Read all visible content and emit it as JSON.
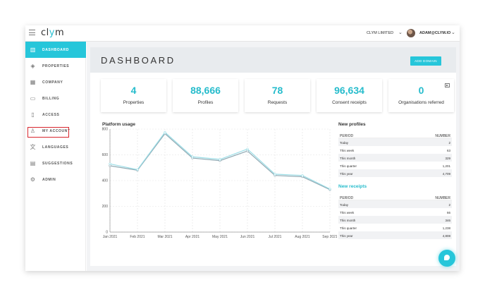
{
  "app": {
    "logo_prefix": "cl",
    "logo_y": "y",
    "logo_suffix": "m",
    "org_name": "CLYM LIMITED",
    "user_email": "ADAM@CLYM.IO"
  },
  "sidebar": {
    "items": [
      {
        "label": "DASHBOARD",
        "icon": "chart-icon"
      },
      {
        "label": "PROPERTIES",
        "icon": "layers-icon"
      },
      {
        "label": "COMPANY",
        "icon": "building-icon"
      },
      {
        "label": "BILLING",
        "icon": "credit-card-icon"
      },
      {
        "label": "ACCESS",
        "icon": "key-icon"
      },
      {
        "label": "MY ACCOUNT",
        "icon": "user-icon"
      },
      {
        "label": "LANGUAGES",
        "icon": "translate-icon"
      },
      {
        "label": "SUGGESTIONS",
        "icon": "book-icon"
      },
      {
        "label": "ADMIN",
        "icon": "gear-icon"
      }
    ]
  },
  "page": {
    "title": "DASHBOARD",
    "add_domain": "ADD DOMAIN"
  },
  "stats": [
    {
      "value": "4",
      "label": "Properties"
    },
    {
      "value": "88,666",
      "label": "Profiles"
    },
    {
      "value": "78",
      "label": "Requests"
    },
    {
      "value": "96,634",
      "label": "Consent receipts"
    },
    {
      "value": "0",
      "label": "Organisations referred"
    }
  ],
  "platform_usage": {
    "title": "Platform usage"
  },
  "chart_data": {
    "type": "line",
    "title": "Platform usage",
    "categories": [
      "Jan 2021",
      "Feb 2021",
      "Mar 2021",
      "Apr 2021",
      "May 2021",
      "Jun 2021",
      "Jul 2021",
      "Aug 2021",
      "Sep 2021"
    ],
    "series": [
      {
        "values": [
          515,
          480,
          765,
          575,
          555,
          630,
          440,
          430,
          330
        ],
        "color": "#8fa9b3"
      },
      {
        "values": [
          530,
          485,
          775,
          585,
          565,
          645,
          450,
          440,
          335
        ],
        "color": "#9bdde6"
      }
    ],
    "yticks": [
      "0",
      "200",
      "400",
      "600",
      "800"
    ],
    "ylim": [
      0,
      800
    ],
    "grid": true
  },
  "new_profiles": {
    "title": "New profiles",
    "col_period": "PERIOD",
    "col_number": "NUMBER",
    "rows": [
      {
        "period": "Today",
        "number": "2"
      },
      {
        "period": "This week",
        "number": "63"
      },
      {
        "period": "This month",
        "number": "329"
      },
      {
        "period": "This quarter",
        "number": "1,201"
      },
      {
        "period": "This year",
        "number": "4,709"
      }
    ]
  },
  "new_receipts": {
    "title": "New receipts",
    "col_period": "PERIOD",
    "col_number": "NUMBER",
    "rows": [
      {
        "period": "Today",
        "number": "2"
      },
      {
        "period": "This week",
        "number": "66"
      },
      {
        "period": "This month",
        "number": "346"
      },
      {
        "period": "This quarter",
        "number": "1,238"
      },
      {
        "period": "This year",
        "number": "4,808"
      }
    ]
  }
}
